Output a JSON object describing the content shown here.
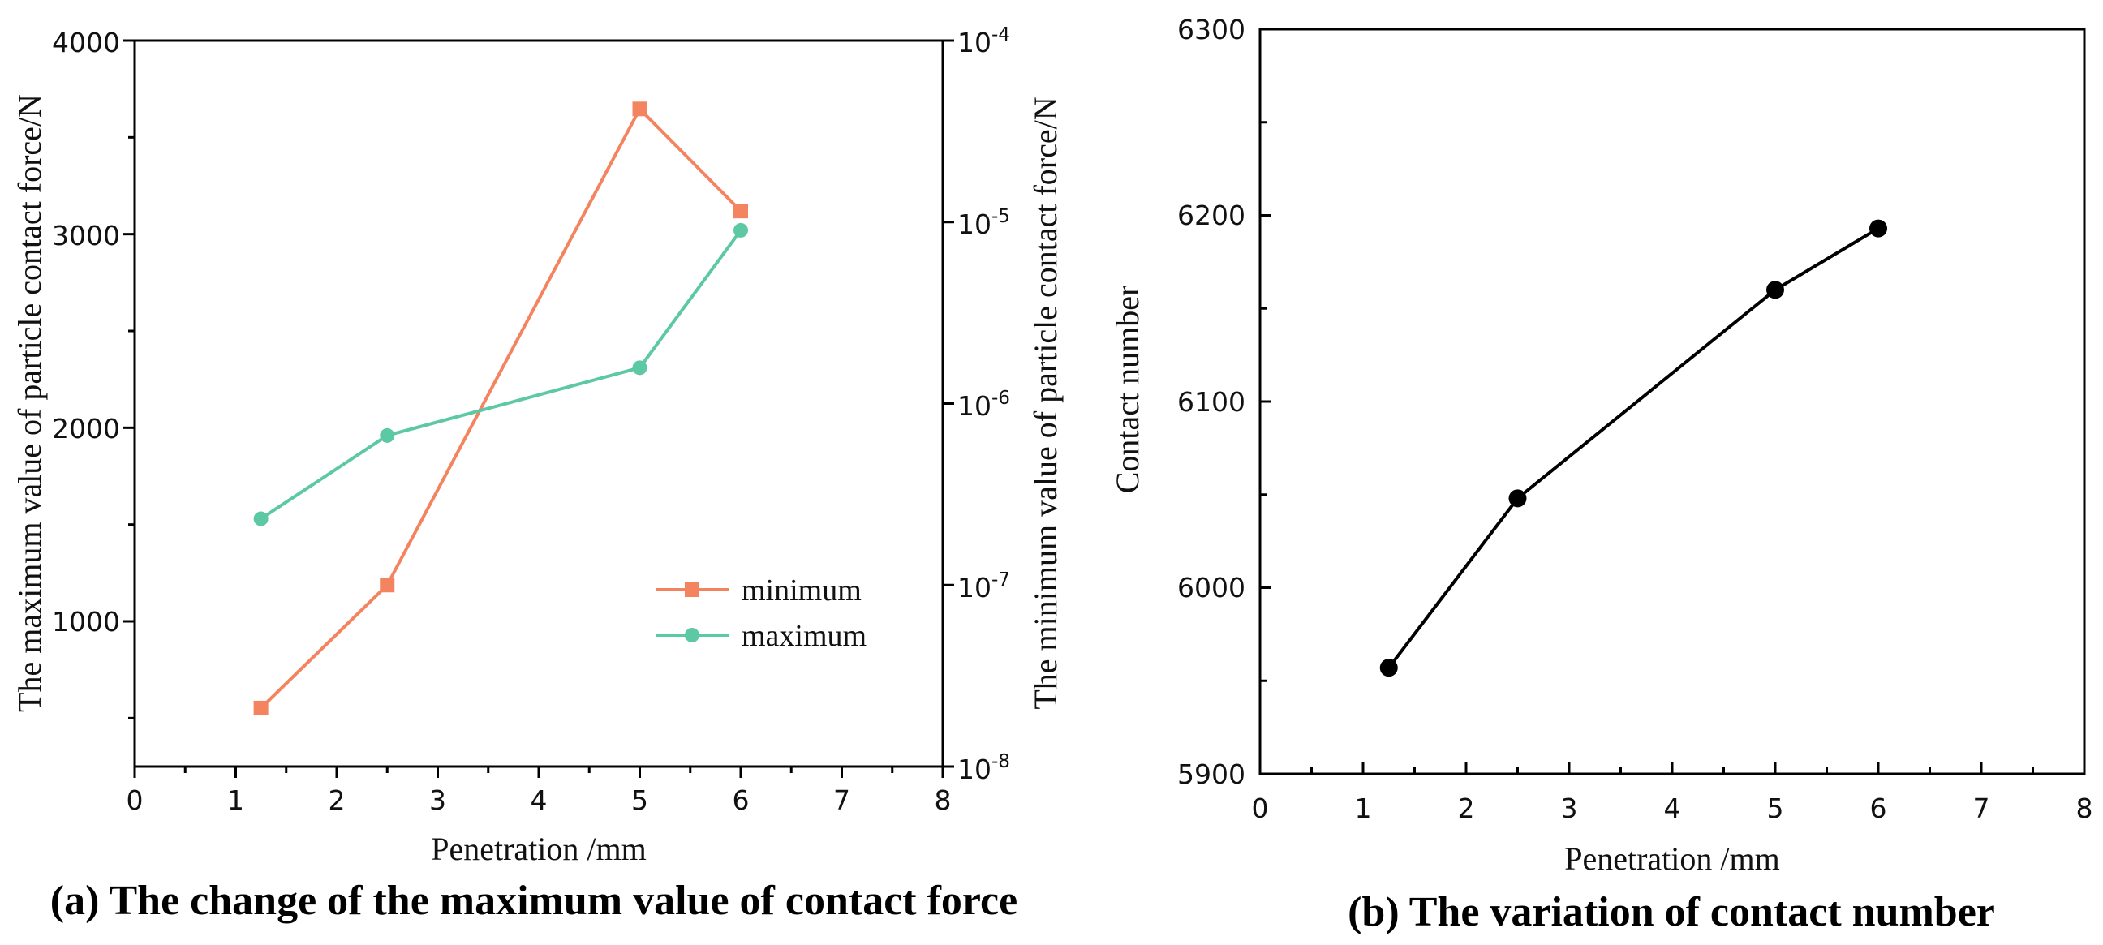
{
  "chart_data": [
    {
      "id": "a",
      "type": "line",
      "caption": "(a)  The  change of the maximum value of contact force",
      "xlabel": "Penetration /mm",
      "ylabel": "The maximum value of particle contact force/N",
      "y2label": "The minimum value of particle contact force/N",
      "xlim": [
        0,
        8
      ],
      "ylim": [
        250,
        4000
      ],
      "y2lim": [
        1e-08,
        0.0001
      ],
      "y2scale": "log",
      "x_ticks": [
        "0",
        "1",
        "2",
        "3",
        "4",
        "5",
        "6",
        "7",
        "8"
      ],
      "y_ticks": [
        "1000",
        "2000",
        "3000",
        "4000"
      ],
      "y2_ticks": [
        {
          "base": "10",
          "exp": "-8"
        },
        {
          "base": "10",
          "exp": "-7"
        },
        {
          "base": "10",
          "exp": "-6"
        },
        {
          "base": "10",
          "exp": "-5"
        },
        {
          "base": "10",
          "exp": "-4"
        }
      ],
      "legend": {
        "position": "lower-right"
      },
      "series": [
        {
          "name": "minimum",
          "axis": "right",
          "color": "#F4845F",
          "marker": "square",
          "x": [
            1.25,
            2.5,
            5,
            6
          ],
          "values": [
            2.1e-08,
            1e-07,
            4.2e-05,
            1.15e-05
          ]
        },
        {
          "name": "maximum",
          "axis": "left",
          "color": "#5CC8A4",
          "marker": "circle",
          "x": [
            1.25,
            2.5,
            5,
            6
          ],
          "values": [
            1530,
            1960,
            2310,
            3020
          ]
        }
      ]
    },
    {
      "id": "b",
      "type": "line",
      "caption": "(b) The variation of contact number",
      "xlabel": "Penetration /mm",
      "ylabel": "Contact number",
      "xlim": [
        0,
        8
      ],
      "ylim": [
        5900,
        6300
      ],
      "x_ticks": [
        "0",
        "1",
        "2",
        "3",
        "4",
        "5",
        "6",
        "7",
        "8"
      ],
      "y_ticks": [
        "5900",
        "6000",
        "6100",
        "6200",
        "6300"
      ],
      "series": [
        {
          "name": "contact number",
          "color": "#000000",
          "marker": "circle",
          "x": [
            1.25,
            2.5,
            5,
            6
          ],
          "values": [
            5957,
            6048,
            6160,
            6193
          ]
        }
      ]
    }
  ]
}
